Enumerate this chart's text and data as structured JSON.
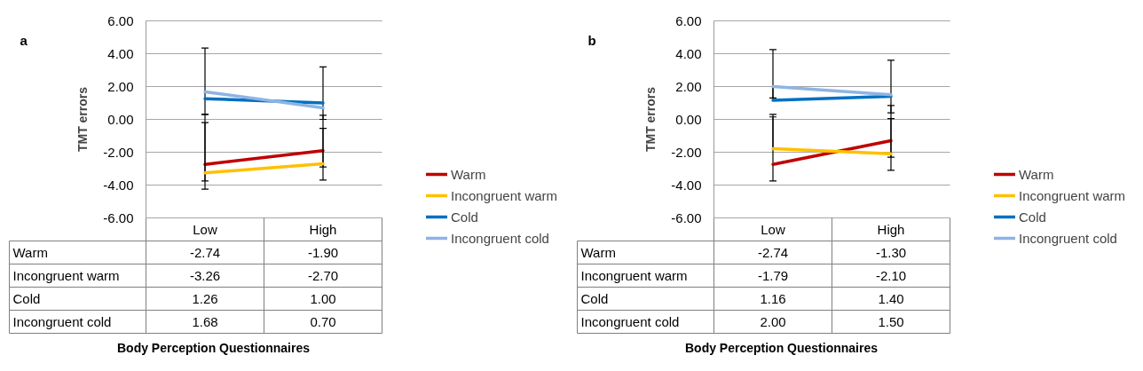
{
  "chart_data": [
    {
      "type": "line",
      "title": "a",
      "xlabel": "Body Perception Questionnaires",
      "ylabel": "TMT errors",
      "categories": [
        "Low",
        "High"
      ],
      "ylim": [
        -6,
        6
      ],
      "yticks": [
        {
          "value": -6,
          "label": "-6.00"
        },
        {
          "value": -4,
          "label": "-4.00"
        },
        {
          "value": -2,
          "label": "-2.00"
        },
        {
          "value": 0,
          "label": "0.00"
        },
        {
          "value": 2,
          "label": "2.00"
        },
        {
          "value": 4,
          "label": "4.00"
        },
        {
          "value": 6,
          "label": "6.00"
        }
      ],
      "grid": "y",
      "legend": "right",
      "series": [
        {
          "name": "Warm",
          "color": "#c00000",
          "values": [
            -2.74,
            -1.9
          ],
          "value_labels": [
            "-2.74",
            "-1.90"
          ],
          "errors": [
            [
              -3.75,
              0.3
            ],
            [
              -2.9,
              0.25
            ]
          ]
        },
        {
          "name": "Incongruent warm",
          "color": "#ffc000",
          "values": [
            -3.26,
            -2.7
          ],
          "value_labels": [
            "-3.26",
            "-2.70"
          ],
          "errors": [
            [
              -4.25,
              -0.2
            ],
            [
              -3.7,
              -0.55
            ]
          ]
        },
        {
          "name": "Cold",
          "color": "#0070c0",
          "values": [
            1.26,
            1.0
          ],
          "value_labels": [
            "1.26",
            "1.00"
          ],
          "errors": [
            [
              0.3,
              4.35
            ],
            [
              0.0,
              3.2
            ]
          ]
        },
        {
          "name": "Incongruent cold",
          "color": "#8eb4e3",
          "values": [
            1.68,
            0.7
          ],
          "value_labels": [
            "1.68",
            "0.70"
          ],
          "errors": [
            null,
            null
          ]
        }
      ]
    },
    {
      "type": "line",
      "title": "b",
      "xlabel": "Body Perception Questionnaires",
      "ylabel": "TMT errors",
      "categories": [
        "Low",
        "High"
      ],
      "ylim": [
        -6,
        6
      ],
      "yticks": [
        {
          "value": -6,
          "label": "-6.00"
        },
        {
          "value": -4,
          "label": "-4.00"
        },
        {
          "value": -2,
          "label": "-2.00"
        },
        {
          "value": 0,
          "label": "0.00"
        },
        {
          "value": 2,
          "label": "2.00"
        },
        {
          "value": 4,
          "label": "4.00"
        },
        {
          "value": 6,
          "label": "6.00"
        }
      ],
      "grid": "y",
      "legend": "right",
      "series": [
        {
          "name": "Warm",
          "color": "#c00000",
          "values": [
            -2.74,
            -1.3
          ],
          "value_labels": [
            "-2.74",
            "-1.30"
          ],
          "errors": [
            [
              -3.75,
              0.3
            ],
            [
              -2.3,
              0.85
            ]
          ]
        },
        {
          "name": "Incongruent warm",
          "color": "#ffc000",
          "values": [
            -1.79,
            -2.1
          ],
          "value_labels": [
            "-1.79",
            "-2.10"
          ],
          "errors": [
            [
              -1.79,
              0.15
            ],
            [
              -3.1,
              0.05
            ]
          ]
        },
        {
          "name": "Cold",
          "color": "#0070c0",
          "values": [
            1.16,
            1.4
          ],
          "value_labels": [
            "1.16",
            "1.40"
          ],
          "errors": [
            [
              1.16,
              4.25
            ],
            [
              0.4,
              3.6
            ]
          ]
        },
        {
          "name": "Incongruent cold",
          "color": "#8eb4e3",
          "values": [
            2.0,
            1.5
          ],
          "value_labels": [
            "2.00",
            "1.50"
          ],
          "errors": [
            [
              1.3,
              2.0
            ],
            null
          ]
        }
      ]
    }
  ]
}
